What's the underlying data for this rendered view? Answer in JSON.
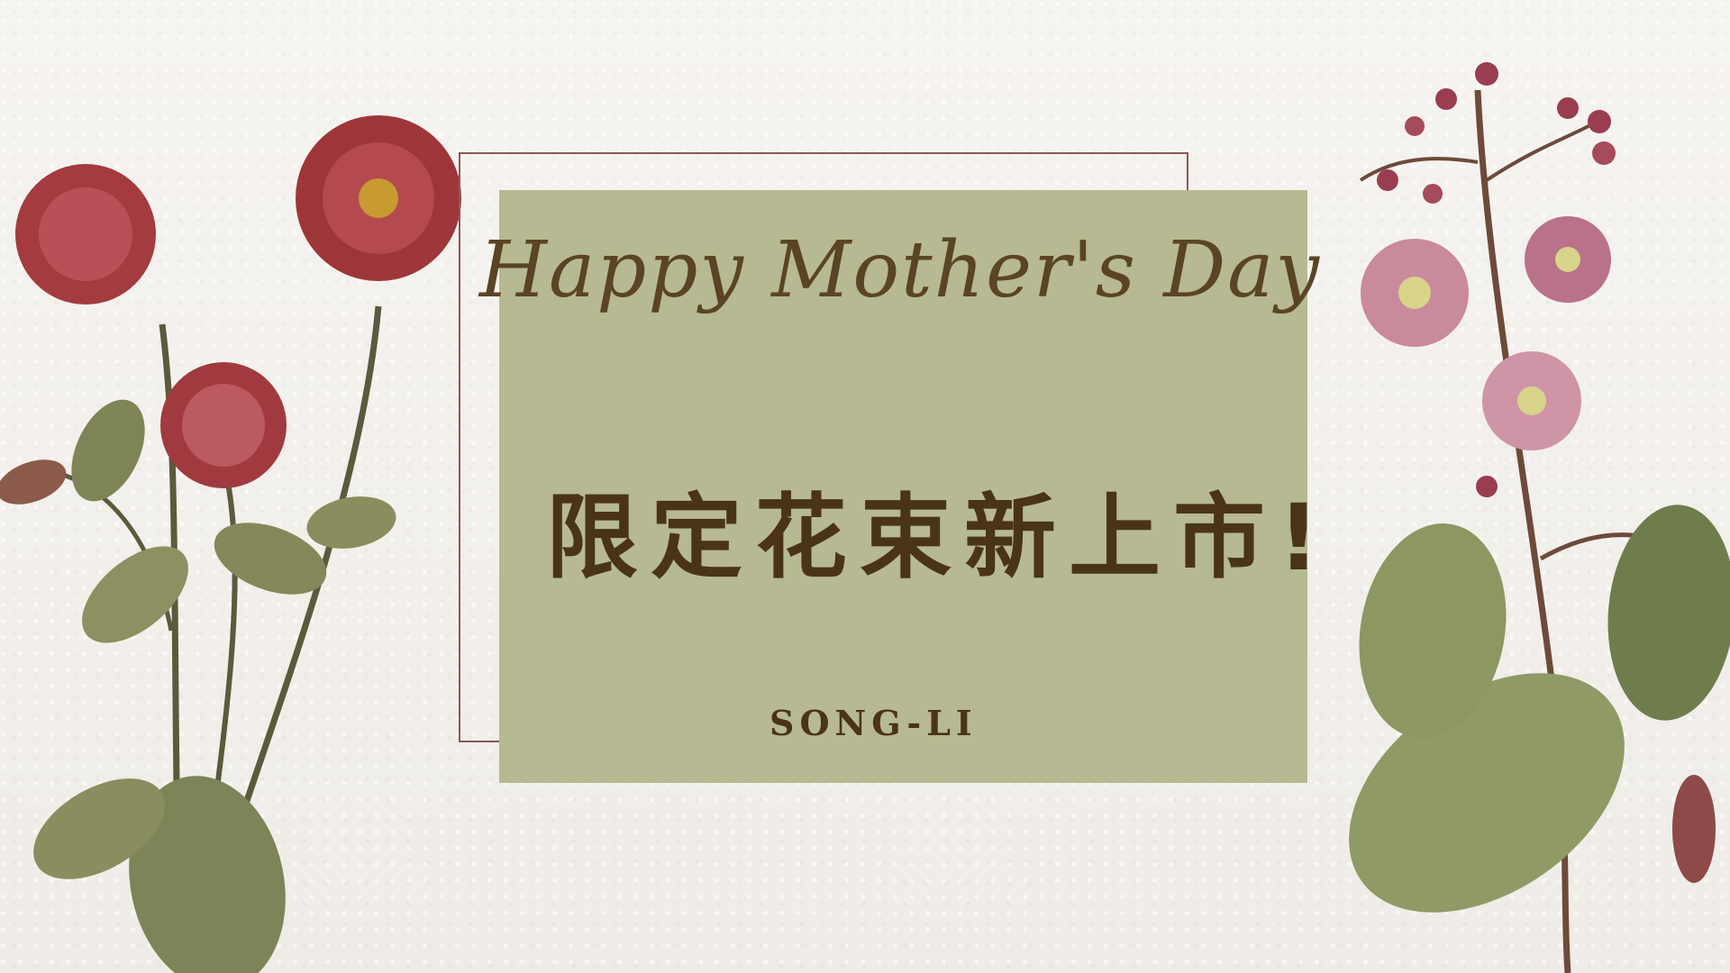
{
  "card": {
    "title": "Happy Mother's Day",
    "headline": "限定花束新上市!",
    "brand": "SONG-LI"
  },
  "colors": {
    "background": "#f4f2ee",
    "card": "#b6b991",
    "frame": "#8e5656",
    "text": "#4a3418"
  },
  "decorations": {
    "left": "dahlia-flowers-illustration",
    "right": "pink-blossom-leaves-illustration"
  }
}
